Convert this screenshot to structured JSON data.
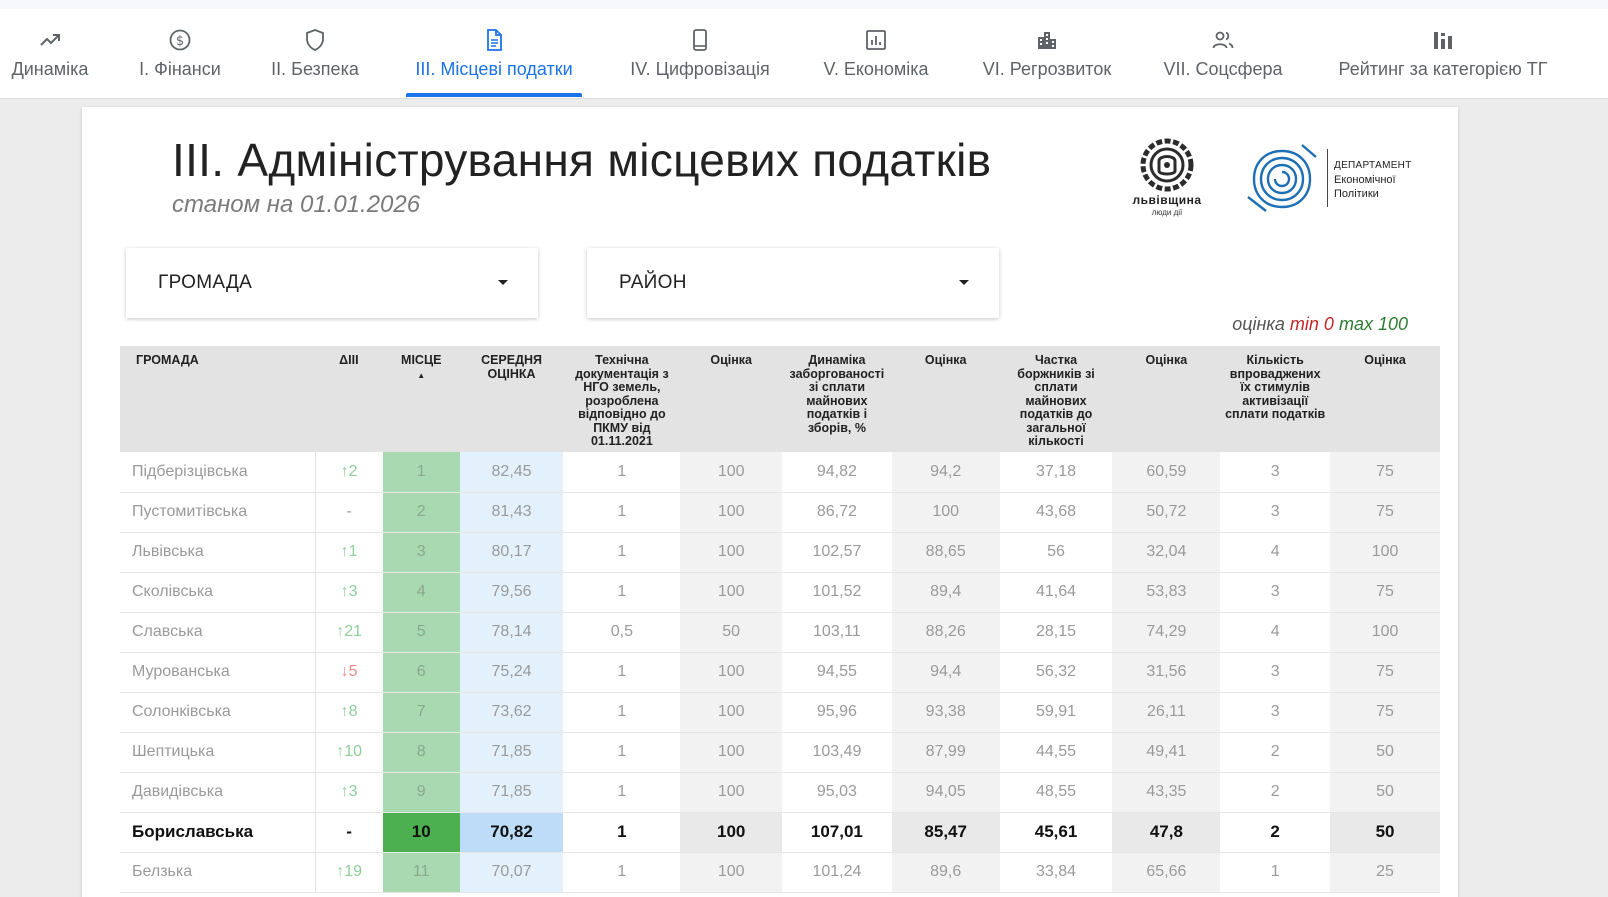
{
  "nav": {
    "tabs": [
      {
        "label": "Динаміка",
        "icon": "trending-up-icon"
      },
      {
        "label": "І. Фінанси",
        "icon": "dollar-circle-icon"
      },
      {
        "label": "ІІ. Безпека",
        "icon": "shield-icon"
      },
      {
        "label": "ІІІ. Місцеві податки",
        "icon": "document-icon",
        "active": true
      },
      {
        "label": "IV. Цифровізація",
        "icon": "smartphone-icon"
      },
      {
        "label": "V. Економіка",
        "icon": "analytics-icon"
      },
      {
        "label": "VI. Регрозвиток",
        "icon": "buildings-icon"
      },
      {
        "label": "VII. Соцсфера",
        "icon": "people-icon"
      },
      {
        "label": "Рейтинг за категорією ТГ",
        "icon": "bar-chart-icon"
      }
    ]
  },
  "header": {
    "title": "ІІІ. Адміністрування місцевих податків",
    "subtitle": "станом на 01.01.2026"
  },
  "logos": {
    "region_name": "львівщина",
    "region_motto": "люди дії",
    "department_line1": "ДЕПАРТАМЕНТ",
    "department_line2": "Економічної",
    "department_line3": "Політики"
  },
  "filters": {
    "community_label": "ГРОМАДА",
    "district_label": "РАЙОН"
  },
  "legend": {
    "word": "оцінка",
    "min": "min 0",
    "max": "max 100"
  },
  "table": {
    "columns": [
      "ГРОМАДА",
      "ΔIII",
      "МІСЦЕ",
      "СЕРЕДНЯ ОЦІНКА",
      "Технічна документація з НГО земель, розроблена відповідно до ПКМУ від 01.11.2021",
      "Оцінка",
      "Динаміка заборгованості зі сплати майнових податків і зборів, %",
      "Оцінка",
      "Частка боржників зі сплати майнових податків до загальної кількості",
      "Оцінка",
      "Кількість впроваджених їх стимулів активізації сплати податків",
      "Оцінка"
    ],
    "sort_indicator": "▲",
    "rows": [
      {
        "name": "Підберізцівська",
        "delta": "↑2",
        "dir": "up",
        "place": "1",
        "avg": "82,45",
        "c1": "1",
        "s1": "100",
        "c2": "94,82",
        "s2": "94,2",
        "c3": "37,18",
        "s3": "60,59",
        "c4": "3",
        "s4": "75"
      },
      {
        "name": "Пустомитівська",
        "delta": "-",
        "dir": "none",
        "place": "2",
        "avg": "81,43",
        "c1": "1",
        "s1": "100",
        "c2": "86,72",
        "s2": "100",
        "c3": "43,68",
        "s3": "50,72",
        "c4": "3",
        "s4": "75"
      },
      {
        "name": "Львівська",
        "delta": "↑1",
        "dir": "up",
        "place": "3",
        "avg": "80,17",
        "c1": "1",
        "s1": "100",
        "c2": "102,57",
        "s2": "88,65",
        "c3": "56",
        "s3": "32,04",
        "c4": "4",
        "s4": "100"
      },
      {
        "name": "Сколівська",
        "delta": "↑3",
        "dir": "up",
        "place": "4",
        "avg": "79,56",
        "c1": "1",
        "s1": "100",
        "c2": "101,52",
        "s2": "89,4",
        "c3": "41,64",
        "s3": "53,83",
        "c4": "3",
        "s4": "75"
      },
      {
        "name": "Славська",
        "delta": "↑21",
        "dir": "up",
        "place": "5",
        "avg": "78,14",
        "c1": "0,5",
        "s1": "50",
        "c2": "103,11",
        "s2": "88,26",
        "c3": "28,15",
        "s3": "74,29",
        "c4": "4",
        "s4": "100"
      },
      {
        "name": "Мурованська",
        "delta": "↓5",
        "dir": "down",
        "place": "6",
        "avg": "75,24",
        "c1": "1",
        "s1": "100",
        "c2": "94,55",
        "s2": "94,4",
        "c3": "56,32",
        "s3": "31,56",
        "c4": "3",
        "s4": "75"
      },
      {
        "name": "Солонківська",
        "delta": "↑8",
        "dir": "up",
        "place": "7",
        "avg": "73,62",
        "c1": "1",
        "s1": "100",
        "c2": "95,96",
        "s2": "93,38",
        "c3": "59,91",
        "s3": "26,11",
        "c4": "3",
        "s4": "75"
      },
      {
        "name": "Шептицька",
        "delta": "↑10",
        "dir": "up",
        "place": "8",
        "avg": "71,85",
        "c1": "1",
        "s1": "100",
        "c2": "103,49",
        "s2": "87,99",
        "c3": "44,55",
        "s3": "49,41",
        "c4": "2",
        "s4": "50"
      },
      {
        "name": "Давидівська",
        "delta": "↑3",
        "dir": "up",
        "place": "9",
        "avg": "71,85",
        "c1": "1",
        "s1": "100",
        "c2": "95,03",
        "s2": "94,05",
        "c3": "48,55",
        "s3": "43,35",
        "c4": "2",
        "s4": "50"
      },
      {
        "name": "Бориславська",
        "delta": "-",
        "dir": "none",
        "place": "10",
        "avg": "70,82",
        "c1": "1",
        "s1": "100",
        "c2": "107,01",
        "s2": "85,47",
        "c3": "45,61",
        "s3": "47,8",
        "c4": "2",
        "s4": "50",
        "highlight": true
      },
      {
        "name": "Белзька",
        "delta": "↑19",
        "dir": "up",
        "place": "11",
        "avg": "70,07",
        "c1": "1",
        "s1": "100",
        "c2": "101,24",
        "s2": "89,6",
        "c3": "33,84",
        "s3": "65,66",
        "c4": "1",
        "s4": "25"
      }
    ]
  }
}
